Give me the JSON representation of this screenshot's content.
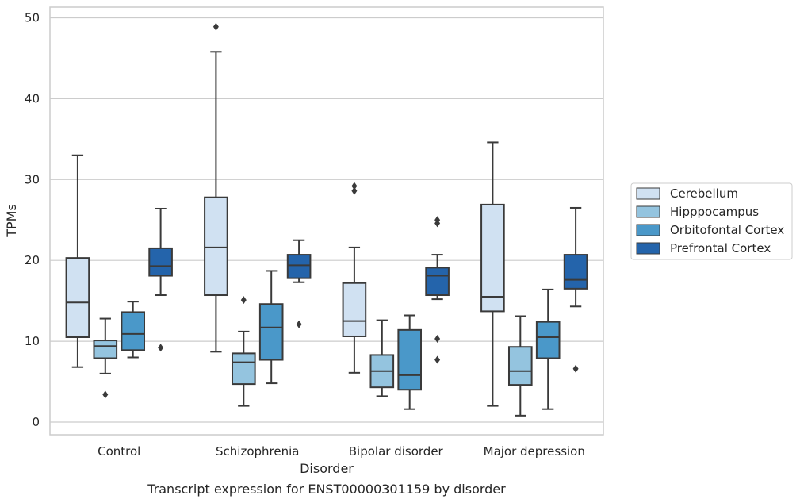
{
  "chart_data": {
    "type": "box",
    "title": "",
    "caption": "Transcript expression for ENST00000301159 by disorder",
    "xlabel": "Disorder",
    "ylabel": "TPMs",
    "ylim": [
      -1.5,
      51.5
    ],
    "yticks": [
      0,
      10,
      20,
      30,
      40,
      50
    ],
    "grid": true,
    "legend_position": "right",
    "categories": [
      "Control",
      "Schizophrenia",
      "Bipolar disorder",
      "Major depression"
    ],
    "series": [
      {
        "name": "Cerebellum",
        "color": "#d0e1f2",
        "boxes": [
          {
            "whisker_low": 6.8,
            "q1": 10.5,
            "median": 14.8,
            "q3": 20.3,
            "whisker_high": 33.0,
            "outliers": []
          },
          {
            "whisker_low": 8.7,
            "q1": 15.7,
            "median": 21.6,
            "q3": 27.8,
            "whisker_high": 45.8,
            "outliers": [
              48.9
            ]
          },
          {
            "whisker_low": 6.1,
            "q1": 10.6,
            "median": 12.5,
            "q3": 17.2,
            "whisker_high": 21.6,
            "outliers": [
              28.6,
              29.2
            ]
          },
          {
            "whisker_low": 2.0,
            "q1": 13.7,
            "median": 15.5,
            "q3": 26.9,
            "whisker_high": 34.6,
            "outliers": []
          }
        ]
      },
      {
        "name": "Hipppocampus",
        "color": "#94c4df",
        "boxes": [
          {
            "whisker_low": 6.0,
            "q1": 7.9,
            "median": 9.4,
            "q3": 10.1,
            "whisker_high": 12.8,
            "outliers": [
              3.4
            ]
          },
          {
            "whisker_low": 2.0,
            "q1": 4.7,
            "median": 7.4,
            "q3": 8.5,
            "whisker_high": 11.2,
            "outliers": [
              15.1
            ]
          },
          {
            "whisker_low": 3.2,
            "q1": 4.3,
            "median": 6.3,
            "q3": 8.3,
            "whisker_high": 12.6,
            "outliers": []
          },
          {
            "whisker_low": 0.8,
            "q1": 4.6,
            "median": 6.3,
            "q3": 9.3,
            "whisker_high": 13.1,
            "outliers": []
          }
        ]
      },
      {
        "name": "Orbitofontal Cortex",
        "color": "#4a98c9",
        "boxes": [
          {
            "whisker_low": 8.0,
            "q1": 8.9,
            "median": 10.9,
            "q3": 13.6,
            "whisker_high": 14.9,
            "outliers": []
          },
          {
            "whisker_low": 4.8,
            "q1": 7.7,
            "median": 11.7,
            "q3": 14.6,
            "whisker_high": 18.7,
            "outliers": []
          },
          {
            "whisker_low": 1.6,
            "q1": 4.0,
            "median": 5.8,
            "q3": 11.4,
            "whisker_high": 13.2,
            "outliers": []
          },
          {
            "whisker_low": 1.6,
            "q1": 7.9,
            "median": 10.5,
            "q3": 12.4,
            "whisker_high": 16.4,
            "outliers": []
          }
        ]
      },
      {
        "name": "Prefrontal Cortex",
        "color": "#2464ab",
        "boxes": [
          {
            "whisker_low": 15.7,
            "q1": 18.1,
            "median": 19.3,
            "q3": 21.5,
            "whisker_high": 26.4,
            "outliers": [
              9.2
            ]
          },
          {
            "whisker_low": 17.3,
            "q1": 17.8,
            "median": 19.4,
            "q3": 20.7,
            "whisker_high": 22.5,
            "outliers": [
              12.1
            ]
          },
          {
            "whisker_low": 15.2,
            "q1": 15.7,
            "median": 18.1,
            "q3": 19.1,
            "whisker_high": 20.7,
            "outliers": [
              7.7,
              10.3,
              24.6,
              25.0
            ]
          },
          {
            "whisker_low": 14.3,
            "q1": 16.5,
            "median": 17.6,
            "q3": 20.7,
            "whisker_high": 26.5,
            "outliers": [
              6.6
            ]
          }
        ]
      }
    ]
  }
}
